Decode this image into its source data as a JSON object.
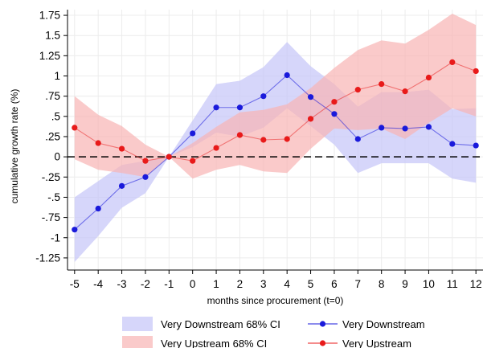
{
  "chart_data": {
    "type": "line",
    "xlabel": "months since procurement (t=0)",
    "ylabel": "cumulative growth rate (%)",
    "x": [
      -5,
      -4,
      -3,
      -2,
      -1,
      0,
      1,
      2,
      3,
      4,
      5,
      6,
      7,
      8,
      9,
      10,
      11,
      12
    ],
    "xlim": [
      -5.3,
      12.3
    ],
    "ylim": [
      -1.4,
      1.82
    ],
    "y_ticks": [
      -1.25,
      -1,
      -0.75,
      -0.5,
      -0.25,
      0,
      0.25,
      0.5,
      0.75,
      1,
      1.25,
      1.5,
      1.75
    ],
    "y_tick_labels": [
      "-1.25",
      "-1",
      "-.75",
      "-.5",
      "-.25",
      "0",
      ".25",
      ".5",
      ".75",
      "1",
      "1.25",
      "1.5",
      "1.75"
    ],
    "x_tick_labels": [
      "-5",
      "-4",
      "-3",
      "-2",
      "-1",
      "0",
      "1",
      "2",
      "3",
      "4",
      "5",
      "6",
      "7",
      "8",
      "9",
      "10",
      "11",
      "12"
    ],
    "grid": true,
    "zero_line": "dashed",
    "legend_position": "bottom",
    "series": [
      {
        "name": "Very Downstream",
        "color": "#1a1adb",
        "values": [
          -0.9,
          -0.64,
          -0.36,
          -0.25,
          0,
          0.29,
          0.61,
          0.61,
          0.75,
          1.01,
          0.74,
          0.53,
          0.22,
          0.36,
          0.35,
          0.37,
          0.16,
          0.14
        ],
        "ci_name": "Very Downstream 68% CI",
        "ci_color": "#c8c8f8",
        "ci_lower": [
          -1.3,
          -0.98,
          -0.63,
          -0.45,
          0,
          0.12,
          0.3,
          0.25,
          0.36,
          0.6,
          0.38,
          0.15,
          -0.2,
          -0.08,
          -0.08,
          -0.08,
          -0.27,
          -0.32
        ],
        "ci_upper": [
          -0.5,
          -0.3,
          -0.1,
          -0.05,
          0,
          0.45,
          0.9,
          0.94,
          1.11,
          1.42,
          1.12,
          0.9,
          0.62,
          0.8,
          0.8,
          0.83,
          0.59,
          0.6
        ]
      },
      {
        "name": "Very Upstream",
        "color": "#e81a1a",
        "values": [
          0.36,
          0.17,
          0.1,
          -0.05,
          0,
          -0.05,
          0.11,
          0.27,
          0.21,
          0.22,
          0.47,
          0.68,
          0.83,
          0.9,
          0.81,
          0.98,
          1.17,
          1.06
        ],
        "ci_name": "Very Upstream 68% CI",
        "ci_color": "#f8b4b4",
        "ci_lower": [
          -0.03,
          -0.16,
          -0.2,
          -0.25,
          0,
          -0.27,
          -0.16,
          -0.1,
          -0.18,
          -0.2,
          0.1,
          0.35,
          0.33,
          0.35,
          0.22,
          0.42,
          0.6,
          0.5
        ],
        "ci_upper": [
          0.75,
          0.52,
          0.38,
          0.15,
          0,
          0.17,
          0.37,
          0.55,
          0.58,
          0.65,
          0.85,
          1.1,
          1.32,
          1.44,
          1.4,
          1.57,
          1.77,
          1.63
        ]
      }
    ]
  }
}
